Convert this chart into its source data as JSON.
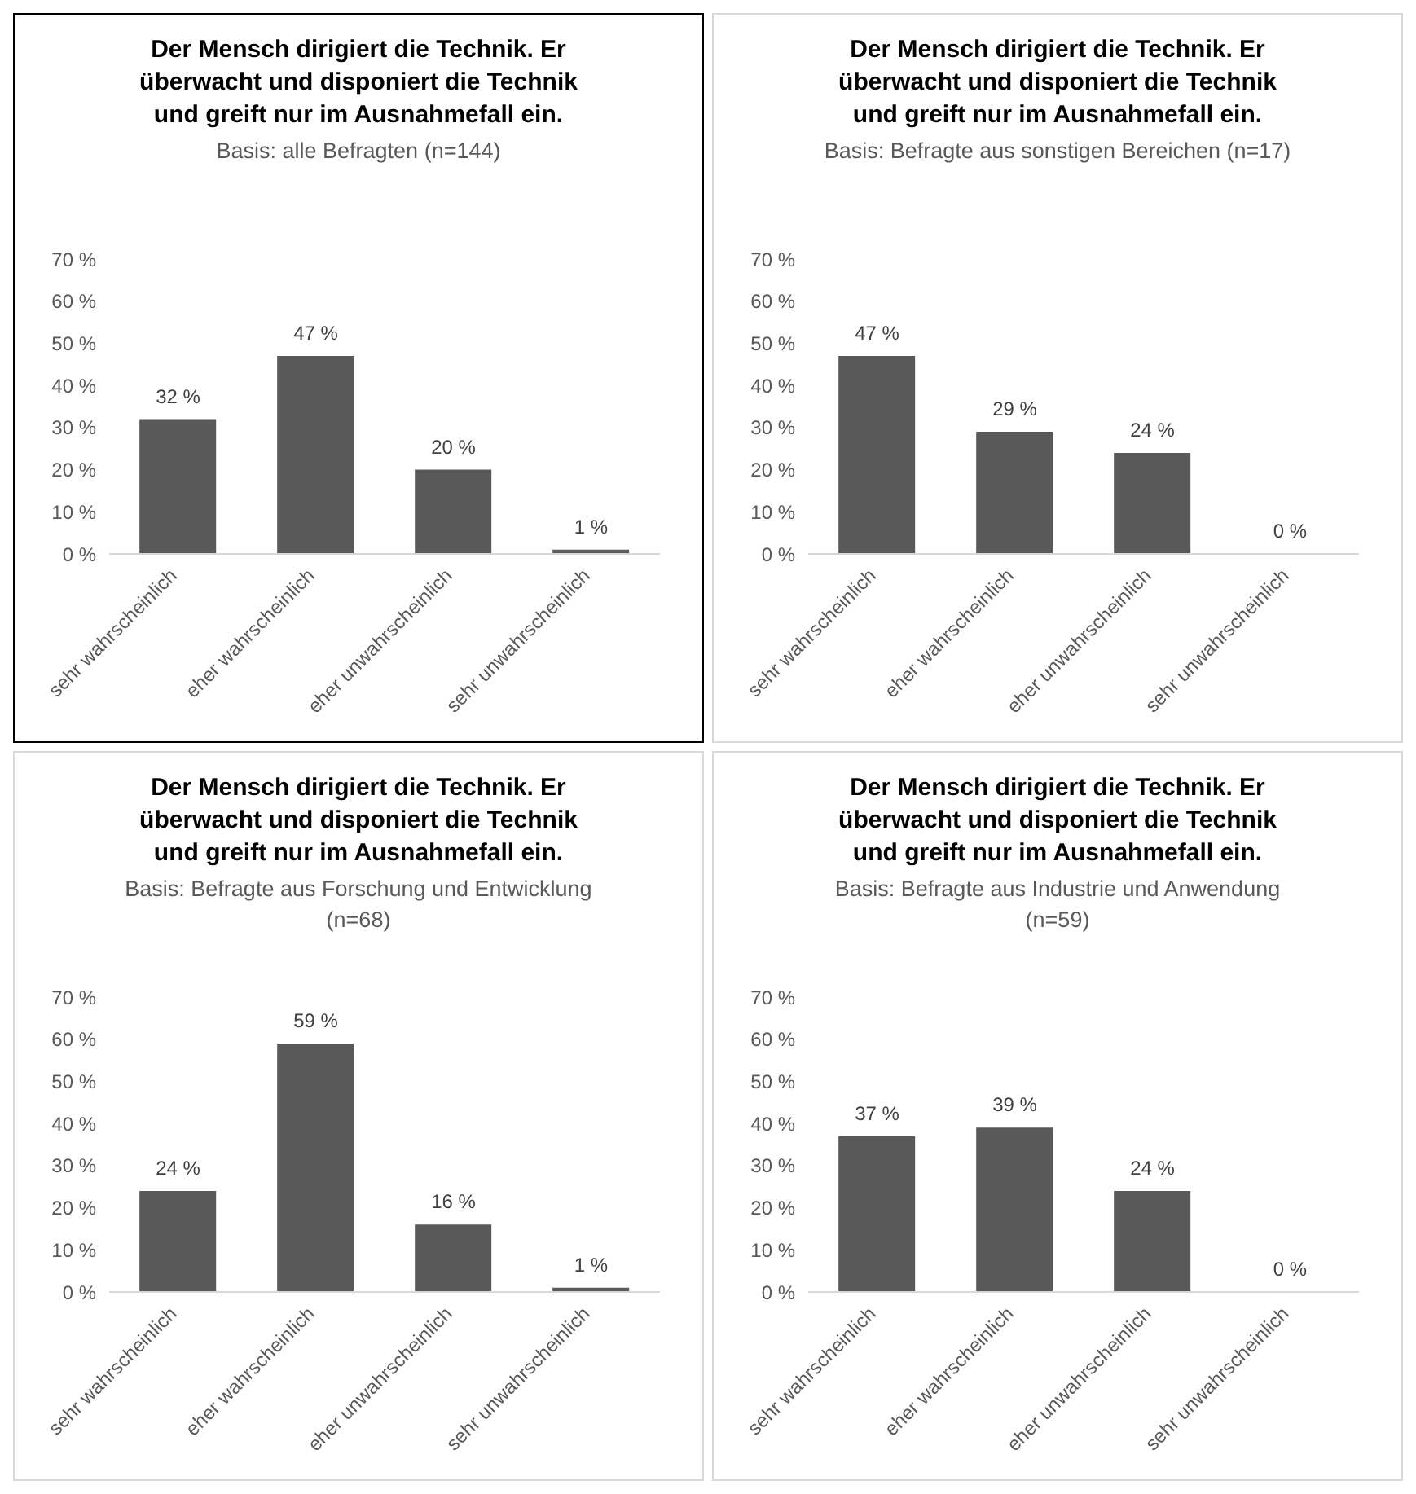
{
  "chart_data": [
    {
      "type": "bar",
      "title": "Der Mensch dirigiert die Technik. Er überwacht und disponiert die Technik und greift nur im Ausnahmefall ein.",
      "subtitle": "Basis: alle Befragten (n=144)",
      "categories": [
        "sehr wahrscheinlich",
        "eher wahrscheinlich",
        "eher unwahrscheinlich",
        "sehr unwahrscheinlich"
      ],
      "values": [
        32,
        47,
        20,
        1
      ],
      "value_labels": [
        "32 %",
        "47 %",
        "20 %",
        "1 %"
      ],
      "color": "#595959",
      "ylim": [
        0,
        70
      ],
      "yticks": [
        {
          "value": 0,
          "label": "0 %"
        },
        {
          "value": 10,
          "label": "10 %"
        },
        {
          "value": 20,
          "label": "20 %"
        },
        {
          "value": 30,
          "label": "30 %"
        },
        {
          "value": 40,
          "label": "40 %"
        },
        {
          "value": 50,
          "label": "50 %"
        },
        {
          "value": 60,
          "label": "60 %"
        },
        {
          "value": 70,
          "label": "70 %"
        }
      ],
      "grid": false,
      "legend": false
    },
    {
      "type": "bar",
      "title": "Der Mensch dirigiert die Technik. Er überwacht und disponiert die Technik und greift nur im Ausnahmefall ein.",
      "subtitle": "Basis: Befragte aus sonstigen Bereichen (n=17)",
      "categories": [
        "sehr wahrscheinlich",
        "eher wahrscheinlich",
        "eher unwahrscheinlich",
        "sehr unwahrscheinlich"
      ],
      "values": [
        47,
        29,
        24,
        0
      ],
      "value_labels": [
        "47 %",
        "29 %",
        "24 %",
        "0 %"
      ],
      "color": "#595959",
      "ylim": [
        0,
        70
      ],
      "yticks": [
        {
          "value": 0,
          "label": "0 %"
        },
        {
          "value": 10,
          "label": "10 %"
        },
        {
          "value": 20,
          "label": "20 %"
        },
        {
          "value": 30,
          "label": "30 %"
        },
        {
          "value": 40,
          "label": "40 %"
        },
        {
          "value": 50,
          "label": "50 %"
        },
        {
          "value": 60,
          "label": "60 %"
        },
        {
          "value": 70,
          "label": "70 %"
        }
      ],
      "grid": false,
      "legend": false
    },
    {
      "type": "bar",
      "title": "Der Mensch dirigiert die Technik. Er überwacht und disponiert die Technik und greift nur im Ausnahmefall ein.",
      "subtitle": "Basis: Befragte aus Forschung und Entwicklung (n=68)",
      "categories": [
        "sehr wahrscheinlich",
        "eher wahrscheinlich",
        "eher unwahrscheinlich",
        "sehr unwahrscheinlich"
      ],
      "values": [
        24,
        59,
        16,
        1
      ],
      "value_labels": [
        "24 %",
        "59 %",
        "16 %",
        "1 %"
      ],
      "color": "#595959",
      "ylim": [
        0,
        70
      ],
      "yticks": [
        {
          "value": 0,
          "label": "0 %"
        },
        {
          "value": 10,
          "label": "10 %"
        },
        {
          "value": 20,
          "label": "20 %"
        },
        {
          "value": 30,
          "label": "30 %"
        },
        {
          "value": 40,
          "label": "40 %"
        },
        {
          "value": 50,
          "label": "50 %"
        },
        {
          "value": 60,
          "label": "60 %"
        },
        {
          "value": 70,
          "label": "70 %"
        }
      ],
      "grid": false,
      "legend": false
    },
    {
      "type": "bar",
      "title": "Der Mensch dirigiert die Technik. Er überwacht und disponiert die Technik und greift nur im Ausnahmefall ein.",
      "subtitle": "Basis: Befragte aus Industrie und Anwendung (n=59)",
      "categories": [
        "sehr wahrscheinlich",
        "eher wahrscheinlich",
        "eher unwahrscheinlich",
        "sehr unwahrscheinlich"
      ],
      "values": [
        37,
        39,
        24,
        0
      ],
      "value_labels": [
        "37 %",
        "39 %",
        "24 %",
        "0 %"
      ],
      "color": "#595959",
      "ylim": [
        0,
        70
      ],
      "yticks": [
        {
          "value": 0,
          "label": "0 %"
        },
        {
          "value": 10,
          "label": "10 %"
        },
        {
          "value": 20,
          "label": "20 %"
        },
        {
          "value": 30,
          "label": "30 %"
        },
        {
          "value": 40,
          "label": "40 %"
        },
        {
          "value": 50,
          "label": "50 %"
        },
        {
          "value": 60,
          "label": "60 %"
        },
        {
          "value": 70,
          "label": "70 %"
        }
      ],
      "grid": false,
      "legend": false
    }
  ]
}
